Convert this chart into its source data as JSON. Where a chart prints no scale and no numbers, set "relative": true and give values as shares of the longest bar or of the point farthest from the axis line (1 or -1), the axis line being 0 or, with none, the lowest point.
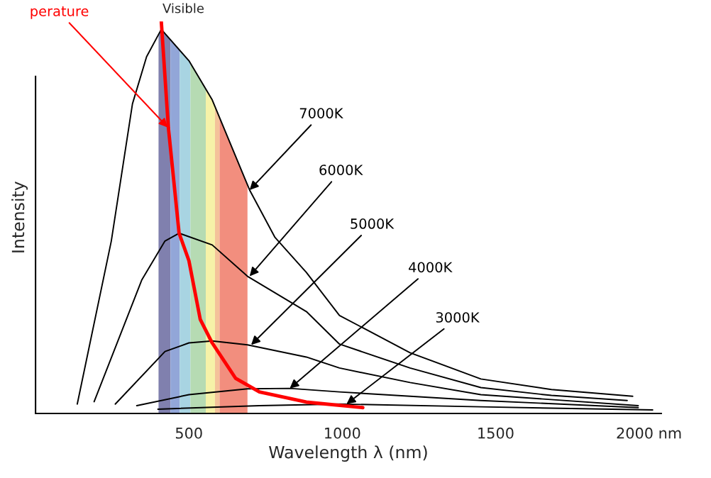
{
  "chart_data": {
    "type": "line",
    "relative": true,
    "xlabel": "Wavelength λ (nm)",
    "ylabel": "Intensity",
    "xlim": [
      0,
      2040
    ],
    "xticks": [
      500,
      1000,
      1500,
      {
        "value": 2000,
        "label": "2000 nm"
      }
    ],
    "series": [
      {
        "color": "#000000",
        "x": [
          136,
          247,
          316,
          362,
          410,
          500,
          576,
          698,
          780,
          883,
          991,
          1221,
          1452,
          1682,
          1947
        ],
        "values": [
          0.024,
          0.44,
          0.79,
          0.91,
          0.98,
          0.9,
          0.8,
          0.57,
          0.45,
          0.36,
          0.25,
          0.155,
          0.088,
          0.061,
          0.044
        ]
      },
      {
        "color": "#000000",
        "x": [
          191,
          346,
          422,
          468,
          576,
          691,
          883,
          991,
          1221,
          1452,
          1682,
          1929
        ],
        "values": [
          0.03,
          0.34,
          0.44,
          0.46,
          0.43,
          0.35,
          0.26,
          0.177,
          0.116,
          0.066,
          0.046,
          0.033
        ]
      },
      {
        "color": "#000000",
        "x": [
          260,
          422,
          500,
          576,
          691,
          883,
          991,
          1221,
          1452,
          1965
        ],
        "values": [
          0.024,
          0.158,
          0.18,
          0.185,
          0.175,
          0.144,
          0.116,
          0.079,
          0.048,
          0.02
        ]
      },
      {
        "color": "#000000",
        "x": [
          330,
          500,
          691,
          829,
          991,
          1452,
          1965
        ],
        "values": [
          0.02,
          0.048,
          0.063,
          0.064,
          0.055,
          0.033,
          0.015
        ]
      },
      {
        "color": "#000000",
        "x": [
          399,
          730,
          991,
          1452,
          2012
        ],
        "values": [
          0.011,
          0.02,
          0.024,
          0.017,
          0.009
        ]
      },
      {
        "color": "#ff0000",
        "x": [
          410,
          433,
          468,
          500,
          537,
          576,
          652,
          730,
          883,
          1067
        ],
        "values": [
          1.0,
          0.73,
          0.46,
          0.39,
          0.24,
          0.18,
          0.09,
          0.055,
          0.029,
          0.015
        ]
      }
    ],
    "bands": [
      {
        "axis": "x",
        "from": 401,
        "to": 440,
        "label": "Visible",
        "color": "#8080ae"
      },
      {
        "axis": "x",
        "from": 440,
        "to": 470,
        "color": "#92a6d8"
      },
      {
        "axis": "x",
        "from": 470,
        "to": 505,
        "color": "#a8d4e2"
      },
      {
        "axis": "x",
        "from": 505,
        "to": 555,
        "color": "#b6dbb3"
      },
      {
        "axis": "x",
        "from": 555,
        "to": 585,
        "color": "#f6f2a8"
      },
      {
        "axis": "x",
        "from": 585,
        "to": 600,
        "color": "#f4c29a"
      },
      {
        "axis": "x",
        "from": 600,
        "to": 691,
        "color": "#f28e7e"
      }
    ],
    "annotations": [
      {
        "text": "7000K",
        "x": 698,
        "y": 0.57
      },
      {
        "text": "6000K",
        "x": 698,
        "y": 0.35
      },
      {
        "text": "5000K",
        "x": 703,
        "y": 0.175
      },
      {
        "text": "4000K",
        "x": 829,
        "y": 0.064
      },
      {
        "text": "3000K",
        "x": 1014,
        "y": 0.024
      },
      {
        "text": "perature",
        "x": 431,
        "y": 0.73
      }
    ],
    "legend": false,
    "grid": false,
    "marker": "none",
    "line_style": "solid"
  }
}
